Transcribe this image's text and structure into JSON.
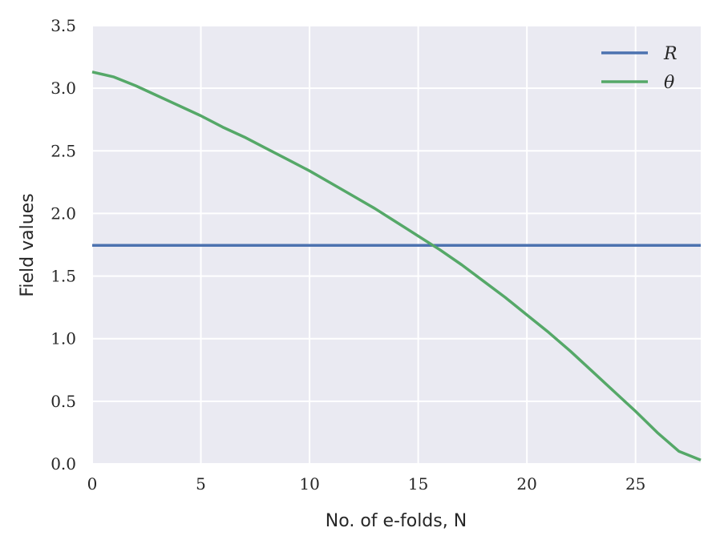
{
  "chart_data": {
    "type": "line",
    "title": "",
    "xlabel": "No. of e-folds, N",
    "ylabel": "Field values",
    "xlim": [
      0,
      28
    ],
    "ylim": [
      0,
      3.5
    ],
    "xticks": [
      0,
      5,
      10,
      15,
      20,
      25
    ],
    "xtick_labels": [
      "0",
      "5",
      "10",
      "15",
      "20",
      "25"
    ],
    "yticks": [
      0,
      0.5,
      1.0,
      1.5,
      2.0,
      2.5,
      3.0,
      3.5
    ],
    "ytick_labels": [
      "0.0",
      "0.5",
      "1.0",
      "1.5",
      "2.0",
      "2.5",
      "3.0",
      "3.5"
    ],
    "grid": true,
    "legend_position": "top-right",
    "series": [
      {
        "name": "R",
        "color": "#4c72b0",
        "x": [
          0,
          28
        ],
        "y": [
          1.745,
          1.745
        ]
      },
      {
        "name": "θ",
        "color": "#55a868",
        "x": [
          0,
          1,
          2,
          3,
          4,
          5,
          6,
          7,
          8,
          9,
          10,
          11,
          12,
          13,
          14,
          15,
          16,
          17,
          18,
          19,
          20,
          21,
          22,
          23,
          24,
          25,
          26,
          27,
          28
        ],
        "y": [
          3.13,
          3.09,
          3.02,
          2.94,
          2.86,
          2.78,
          2.69,
          2.61,
          2.52,
          2.43,
          2.34,
          2.24,
          2.14,
          2.04,
          1.93,
          1.82,
          1.71,
          1.59,
          1.46,
          1.33,
          1.19,
          1.05,
          0.9,
          0.74,
          0.58,
          0.42,
          0.25,
          0.1,
          0.03
        ]
      }
    ]
  }
}
